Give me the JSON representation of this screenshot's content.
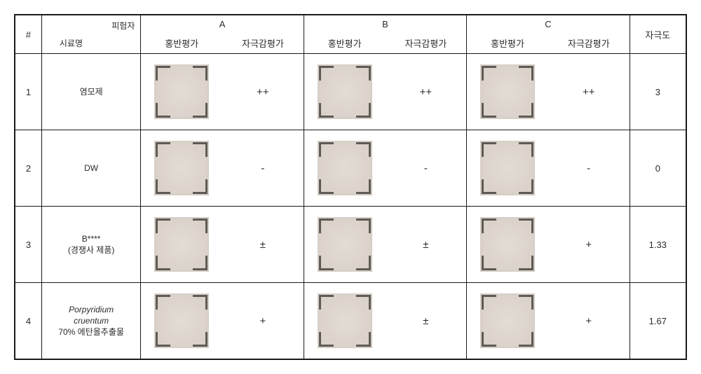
{
  "header": {
    "numSymbol": "#",
    "diag_top": "피험자",
    "diag_bottom": "시료명",
    "groups": [
      "A",
      "B",
      "C"
    ],
    "sub": {
      "erythema": "홍반평가",
      "irritation": "자극감평가"
    },
    "score": "자극도"
  },
  "rows": [
    {
      "num": "1",
      "sample": "염모제",
      "A_rating": "++",
      "B_rating": "++",
      "C_rating": "++",
      "score": "3"
    },
    {
      "num": "2",
      "sample": "DW",
      "A_rating": "-",
      "B_rating": "-",
      "C_rating": "-",
      "score": "0"
    },
    {
      "num": "3",
      "sample": "B****\n(경쟁사 제품)",
      "A_rating": "±",
      "B_rating": "±",
      "C_rating": "+",
      "score": "1.33"
    },
    {
      "num": "4",
      "sample_italic": "Porpyridium\ncruentum",
      "sample_suffix": "70% 에탄올추출물",
      "A_rating": "+",
      "B_rating": "±",
      "C_rating": "+",
      "score": "1.67"
    }
  ],
  "style": {
    "patch_bg_inner": "#e3dcd4",
    "patch_bg_outer": "#d7cfc5",
    "corner_color": "#5e5a55",
    "border_color": "#1a1a1a",
    "text_color": "#2b2b2b",
    "font_size_body": 13,
    "font_size_rating": 15,
    "font_size_sample": 12
  }
}
